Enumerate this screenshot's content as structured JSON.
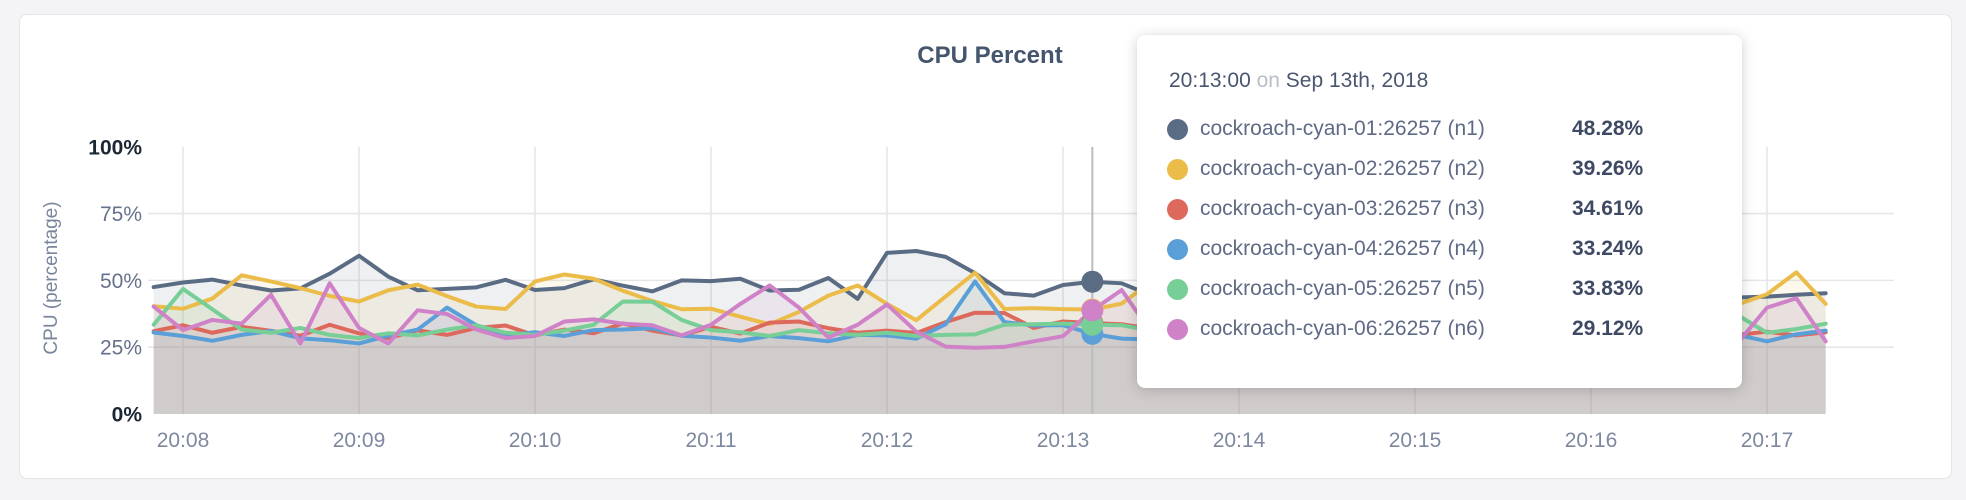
{
  "chart": {
    "title": "CPU Percent",
    "y_axis_label": "CPU (percentage)",
    "y_ticks": [
      {
        "label": "100%",
        "value": 100,
        "emphasis": true
      },
      {
        "label": "75%",
        "value": 75,
        "emphasis": false
      },
      {
        "label": "50%",
        "value": 50,
        "emphasis": false
      },
      {
        "label": "25%",
        "value": 25,
        "emphasis": false
      },
      {
        "label": "0%",
        "value": 0,
        "emphasis": true
      }
    ],
    "x_ticks": [
      "20:08",
      "20:09",
      "20:10",
      "20:11",
      "20:12",
      "20:13",
      "20:14",
      "20:15",
      "20:16",
      "20:17"
    ]
  },
  "palette": {
    "title_text": "#46556e",
    "axis_text_strong": "#1c2634",
    "axis_text_muted": "#66728b",
    "x_tick_text": "#7d89a0",
    "gridline": "#e6e6e6",
    "hover_line": "#bcbcbc",
    "card_border": "#e5e5e7",
    "page_background": "#f4f4f6"
  },
  "chart_data": {
    "type": "area",
    "title": "CPU Percent",
    "xlabel": "",
    "ylabel": "CPU (percentage)",
    "ylim": [
      0,
      100
    ],
    "grid": true,
    "x_start_time": "20:07:50",
    "x_interval_seconds": 10,
    "x_tick_labels": [
      "20:08",
      "20:09",
      "20:10",
      "20:11",
      "20:12",
      "20:13",
      "20:14",
      "20:15",
      "20:16",
      "20:17"
    ],
    "hover_index": 32,
    "hover_time": "20:13:00",
    "fill_opacity": 0.1,
    "series": [
      {
        "name": "cockroach-cyan-01:26257 (n1)",
        "color": "#5a6b84",
        "values": [
          47.5,
          49.2,
          50.3,
          48.1,
          46.2,
          47.0,
          52.5,
          59.2,
          51.4,
          46.3,
          46.8,
          47.4,
          50.2,
          46.4,
          47.1,
          50.4,
          48.0,
          45.9,
          50.0,
          49.7,
          50.6,
          46.2,
          46.5,
          50.9,
          43.1,
          60.3,
          61.0,
          58.8,
          52.7,
          45.2,
          44.3,
          48.28,
          49.5,
          48.9,
          44.4,
          45.6,
          47.1,
          46.2,
          44.3,
          47.6,
          49.1,
          45.3,
          46.6,
          48.2,
          45.4,
          44.1,
          46.3,
          47.7,
          45.2,
          44.2,
          46.1,
          48.4,
          47.2,
          44.6,
          43.6,
          43.9,
          44.6,
          45.2
        ]
      },
      {
        "name": "cockroach-cyan-02:26257 (n2)",
        "color": "#ecbc4a",
        "values": [
          40.3,
          39.4,
          43.2,
          51.9,
          49.6,
          47.1,
          44.2,
          42.1,
          46.3,
          48.4,
          44.1,
          40.2,
          39.3,
          49.6,
          52.2,
          50.6,
          46.1,
          42.3,
          39.2,
          39.4,
          36.4,
          33.6,
          38.2,
          44.3,
          48.1,
          41.2,
          35.1,
          44.0,
          52.9,
          39.3,
          39.6,
          39.26,
          39.1,
          41.3,
          49.4,
          46.2,
          43.1,
          41.4,
          44.2,
          47.2,
          42.1,
          39.6,
          43.2,
          46.4,
          41.1,
          38.6,
          42.2,
          45.1,
          47.9,
          44.2,
          42.4,
          46.1,
          48.9,
          46.2,
          41.0,
          44.8,
          53.0,
          41.2
        ]
      },
      {
        "name": "cockroach-cyan-03:26257 (n3)",
        "color": "#dd685c",
        "values": [
          31.0,
          33.2,
          30.4,
          32.6,
          31.1,
          29.3,
          33.4,
          30.2,
          28.4,
          31.3,
          29.6,
          32.2,
          33.1,
          29.4,
          31.6,
          30.2,
          33.9,
          31.2,
          29.4,
          32.6,
          30.1,
          34.2,
          34.6,
          32.1,
          30.4,
          31.2,
          30.3,
          34.4,
          37.9,
          37.8,
          32.2,
          34.61,
          34.0,
          33.6,
          31.9,
          30.2,
          32.4,
          31.1,
          29.6,
          32.2,
          30.4,
          33.1,
          31.2,
          29.8,
          32.3,
          30.6,
          31.9,
          29.4,
          32.1,
          30.2,
          31.6,
          29.8,
          32.4,
          30.9,
          29.6,
          30.8,
          29.4,
          30.6
        ]
      },
      {
        "name": "cockroach-cyan-04:26257 (n4)",
        "color": "#5b9fd8",
        "values": [
          30.5,
          29.2,
          27.4,
          29.6,
          31.1,
          28.3,
          27.6,
          26.4,
          29.3,
          31.6,
          39.8,
          33.2,
          29.4,
          30.6,
          29.2,
          31.4,
          31.6,
          32.1,
          29.3,
          28.6,
          27.4,
          29.2,
          28.4,
          27.2,
          29.6,
          29.4,
          28.2,
          33.6,
          49.6,
          34.4,
          33.1,
          33.24,
          30.0,
          28.2,
          27.9,
          29.2,
          28.4,
          29.6,
          27.8,
          30.2,
          29.1,
          28.4,
          30.6,
          29.2,
          27.6,
          29.8,
          28.6,
          30.1,
          29.2,
          27.8,
          29.4,
          28.2,
          30.4,
          29.1,
          29.6,
          27.2,
          29.8,
          31.2
        ]
      },
      {
        "name": "cockroach-cyan-05:26257 (n5)",
        "color": "#77ce96",
        "values": [
          33.4,
          46.8,
          39.2,
          31.6,
          30.4,
          32.2,
          29.6,
          28.4,
          30.2,
          29.4,
          31.6,
          33.2,
          30.4,
          29.6,
          31.2,
          33.4,
          42.1,
          42.0,
          35.2,
          31.4,
          30.6,
          29.2,
          31.4,
          30.2,
          29.6,
          30.4,
          29.2,
          29.6,
          29.8,
          33.4,
          33.6,
          33.83,
          33.4,
          33.2,
          31.2,
          30.6,
          29.4,
          31.2,
          30.4,
          29.6,
          31.8,
          30.2,
          29.4,
          31.6,
          30.8,
          29.2,
          31.4,
          30.6,
          29.8,
          31.2,
          30.4,
          29.6,
          31.8,
          30.2,
          37.0,
          30.4,
          31.8,
          33.8
        ]
      },
      {
        "name": "cockroach-cyan-06:26257 (n6)",
        "color": "#cf82c8",
        "values": [
          40.2,
          31.4,
          35.2,
          33.8,
          44.6,
          26.4,
          48.9,
          32.2,
          26.4,
          38.8,
          37.4,
          31.6,
          28.4,
          29.2,
          34.6,
          35.4,
          33.8,
          33.2,
          29.4,
          33.4,
          41.2,
          48.1,
          39.8,
          28.6,
          33.4,
          41.0,
          30.8,
          25.2,
          24.8,
          25.1,
          27.2,
          29.12,
          38.8,
          46.4,
          30.6,
          27.4,
          26.2,
          28.4,
          27.6,
          29.2,
          31.4,
          28.6,
          27.2,
          29.4,
          28.2,
          30.6,
          29.2,
          27.8,
          29.6,
          28.4,
          30.2,
          28.6,
          27.4,
          29.2,
          26.6,
          39.8,
          43.3,
          27.2
        ]
      }
    ]
  },
  "tooltip": {
    "time": "20:13:00",
    "separator": "on",
    "date": "Sep 13th, 2018",
    "rows": [
      {
        "label": "cockroach-cyan-01:26257 (n1)",
        "value": "48.28%",
        "color": "#5a6b84"
      },
      {
        "label": "cockroach-cyan-02:26257 (n2)",
        "value": "39.26%",
        "color": "#ecbc4a"
      },
      {
        "label": "cockroach-cyan-03:26257 (n3)",
        "value": "34.61%",
        "color": "#dd685c"
      },
      {
        "label": "cockroach-cyan-04:26257 (n4)",
        "value": "33.24%",
        "color": "#5b9fd8"
      },
      {
        "label": "cockroach-cyan-05:26257 (n5)",
        "value": "33.83%",
        "color": "#77ce96"
      },
      {
        "label": "cockroach-cyan-06:26257 (n6)",
        "value": "29.12%",
        "color": "#cf82c8"
      }
    ]
  }
}
